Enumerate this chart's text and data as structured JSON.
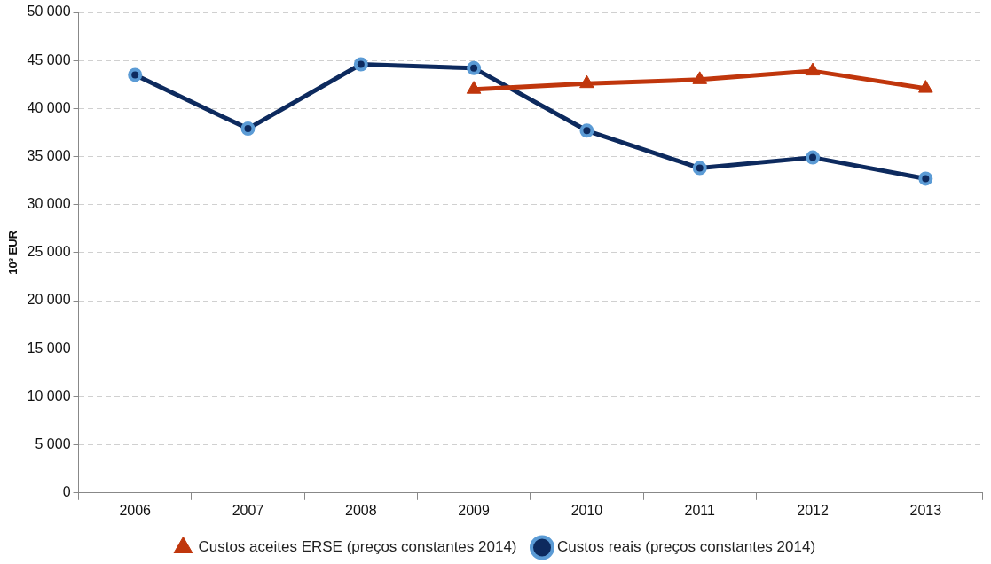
{
  "chart_data": {
    "type": "line",
    "ylabel": "10³ EUR",
    "categories": [
      "2006",
      "2007",
      "2008",
      "2009",
      "2010",
      "2011",
      "2012",
      "2013"
    ],
    "series": [
      {
        "name": "Custos aceites ERSE (preços constantes 2014)",
        "color": "#c0360c",
        "marker": "triangle",
        "values": [
          null,
          null,
          null,
          42000,
          42600,
          43000,
          43900,
          42100
        ]
      },
      {
        "name": "Custos reais (preços constantes 2014)",
        "color": "#0d2a5e",
        "marker": "circle",
        "values": [
          43500,
          37900,
          44600,
          44200,
          37700,
          33800,
          34900,
          32700
        ]
      }
    ],
    "ylim": [
      0,
      50000
    ],
    "yticks": [
      {
        "value": 0,
        "label": "0"
      },
      {
        "value": 5000,
        "label": "5 000"
      },
      {
        "value": 10000,
        "label": "10 000"
      },
      {
        "value": 15000,
        "label": "15 000"
      },
      {
        "value": 20000,
        "label": "20 000"
      },
      {
        "value": 25000,
        "label": "25 000"
      },
      {
        "value": 30000,
        "label": "30 000"
      },
      {
        "value": 35000,
        "label": "35 000"
      },
      {
        "value": 40000,
        "label": "40 000"
      },
      {
        "value": 45000,
        "label": "45 000"
      },
      {
        "value": 50000,
        "label": "50 000"
      }
    ],
    "grid": "y",
    "legend": "bottom",
    "line_style": "solid"
  }
}
